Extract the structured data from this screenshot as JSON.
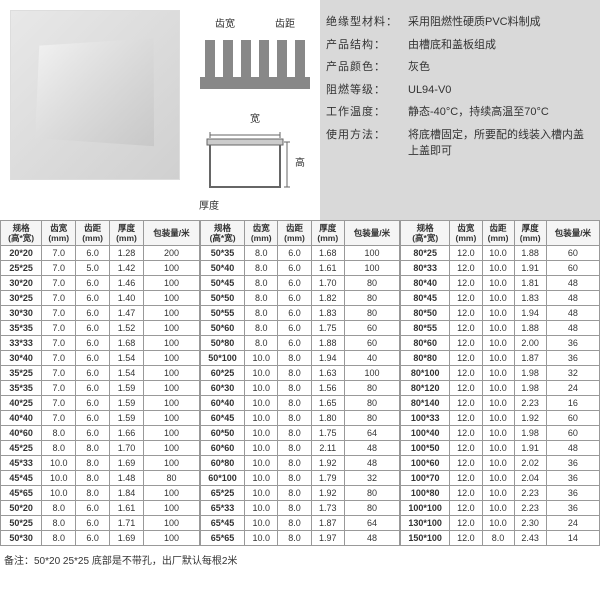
{
  "diagram": {
    "topLabels": {
      "l": "齿宽",
      "r": "齿距"
    },
    "botLabels": {
      "w": "宽",
      "h": "高",
      "t": "厚度"
    }
  },
  "specs": [
    {
      "k": "绝缘型材料：",
      "v": "采用阻燃性硬质PVC料制成"
    },
    {
      "k": "产品结构：",
      "v": "由槽底和盖板组成"
    },
    {
      "k": "产品颜色：",
      "v": "灰色"
    },
    {
      "k": "阻燃等级：",
      "v": "UL94-V0"
    },
    {
      "k": "工作温度：",
      "v": "静态-40°C，持续高温至70°C"
    },
    {
      "k": "使用方法：",
      "v": "将底槽固定，所要配的线装入槽内盖上盖即可"
    }
  ],
  "headers": [
    "规格\n(高*宽)",
    "齿宽\n(mm)",
    "齿距\n(mm)",
    "厚度\n(mm)",
    "包装量/米"
  ],
  "cols": [
    [
      [
        "20*20",
        "7.0",
        "6.0",
        "1.28",
        "200"
      ],
      [
        "25*25",
        "7.0",
        "5.0",
        "1.42",
        "100"
      ],
      [
        "30*20",
        "7.0",
        "6.0",
        "1.46",
        "100"
      ],
      [
        "30*25",
        "7.0",
        "6.0",
        "1.40",
        "100"
      ],
      [
        "30*30",
        "7.0",
        "6.0",
        "1.47",
        "100"
      ],
      [
        "35*35",
        "7.0",
        "6.0",
        "1.52",
        "100"
      ],
      [
        "33*33",
        "7.0",
        "6.0",
        "1.68",
        "100"
      ],
      [
        "30*40",
        "7.0",
        "6.0",
        "1.54",
        "100"
      ],
      [
        "35*25",
        "7.0",
        "6.0",
        "1.54",
        "100"
      ],
      [
        "35*35",
        "7.0",
        "6.0",
        "1.59",
        "100"
      ],
      [
        "40*25",
        "7.0",
        "6.0",
        "1.59",
        "100"
      ],
      [
        "40*40",
        "7.0",
        "6.0",
        "1.59",
        "100"
      ],
      [
        "40*60",
        "8.0",
        "6.0",
        "1.66",
        "100"
      ],
      [
        "45*25",
        "8.0",
        "8.0",
        "1.70",
        "100"
      ],
      [
        "45*33",
        "10.0",
        "8.0",
        "1.69",
        "100"
      ],
      [
        "45*45",
        "10.0",
        "8.0",
        "1.48",
        "80"
      ],
      [
        "45*65",
        "10.0",
        "8.0",
        "1.84",
        "100"
      ],
      [
        "50*20",
        "8.0",
        "6.0",
        "1.61",
        "100"
      ],
      [
        "50*25",
        "8.0",
        "6.0",
        "1.71",
        "100"
      ],
      [
        "50*30",
        "8.0",
        "6.0",
        "1.69",
        "100"
      ]
    ],
    [
      [
        "50*35",
        "8.0",
        "6.0",
        "1.68",
        "100"
      ],
      [
        "50*40",
        "8.0",
        "6.0",
        "1.61",
        "100"
      ],
      [
        "50*45",
        "8.0",
        "6.0",
        "1.70",
        "80"
      ],
      [
        "50*50",
        "8.0",
        "6.0",
        "1.82",
        "80"
      ],
      [
        "50*55",
        "8.0",
        "6.0",
        "1.83",
        "80"
      ],
      [
        "50*60",
        "8.0",
        "6.0",
        "1.75",
        "60"
      ],
      [
        "50*80",
        "8.0",
        "6.0",
        "1.88",
        "60"
      ],
      [
        "50*100",
        "10.0",
        "8.0",
        "1.94",
        "40"
      ],
      [
        "60*25",
        "10.0",
        "8.0",
        "1.63",
        "100"
      ],
      [
        "60*30",
        "10.0",
        "8.0",
        "1.56",
        "80"
      ],
      [
        "60*40",
        "10.0",
        "8.0",
        "1.65",
        "80"
      ],
      [
        "60*45",
        "10.0",
        "8.0",
        "1.80",
        "80"
      ],
      [
        "60*50",
        "10.0",
        "8.0",
        "1.75",
        "64"
      ],
      [
        "60*60",
        "10.0",
        "8.0",
        "2.11",
        "48"
      ],
      [
        "60*80",
        "10.0",
        "8.0",
        "1.92",
        "48"
      ],
      [
        "60*100",
        "10.0",
        "8.0",
        "1.79",
        "32"
      ],
      [
        "65*25",
        "10.0",
        "8.0",
        "1.92",
        "80"
      ],
      [
        "65*33",
        "10.0",
        "8.0",
        "1.73",
        "80"
      ],
      [
        "65*45",
        "10.0",
        "8.0",
        "1.87",
        "64"
      ],
      [
        "65*65",
        "10.0",
        "8.0",
        "1.97",
        "48"
      ]
    ],
    [
      [
        "80*25",
        "12.0",
        "10.0",
        "1.88",
        "60"
      ],
      [
        "80*33",
        "12.0",
        "10.0",
        "1.91",
        "60"
      ],
      [
        "80*40",
        "12.0",
        "10.0",
        "1.81",
        "48"
      ],
      [
        "80*45",
        "12.0",
        "10.0",
        "1.83",
        "48"
      ],
      [
        "80*50",
        "12.0",
        "10.0",
        "1.94",
        "48"
      ],
      [
        "80*55",
        "12.0",
        "10.0",
        "1.88",
        "48"
      ],
      [
        "80*60",
        "12.0",
        "10.0",
        "2.00",
        "36"
      ],
      [
        "80*80",
        "12.0",
        "10.0",
        "1.87",
        "36"
      ],
      [
        "80*100",
        "12.0",
        "10.0",
        "1.98",
        "32"
      ],
      [
        "80*120",
        "12.0",
        "10.0",
        "1.98",
        "24"
      ],
      [
        "80*140",
        "12.0",
        "10.0",
        "2.23",
        "16"
      ],
      [
        "100*33",
        "12.0",
        "10.0",
        "1.92",
        "60"
      ],
      [
        "100*40",
        "12.0",
        "10.0",
        "1.98",
        "60"
      ],
      [
        "100*50",
        "12.0",
        "10.0",
        "1.91",
        "48"
      ],
      [
        "100*60",
        "12.0",
        "10.0",
        "2.02",
        "36"
      ],
      [
        "100*70",
        "12.0",
        "10.0",
        "2.04",
        "36"
      ],
      [
        "100*80",
        "12.0",
        "10.0",
        "2.23",
        "36"
      ],
      [
        "100*100",
        "12.0",
        "10.0",
        "2.23",
        "36"
      ],
      [
        "130*100",
        "12.0",
        "10.0",
        "2.30",
        "24"
      ],
      [
        "150*100",
        "12.0",
        "8.0",
        "2.43",
        "14"
      ]
    ]
  ],
  "footer": "备注：50*20 25*25 底部是不带孔，出厂默认每根2米"
}
